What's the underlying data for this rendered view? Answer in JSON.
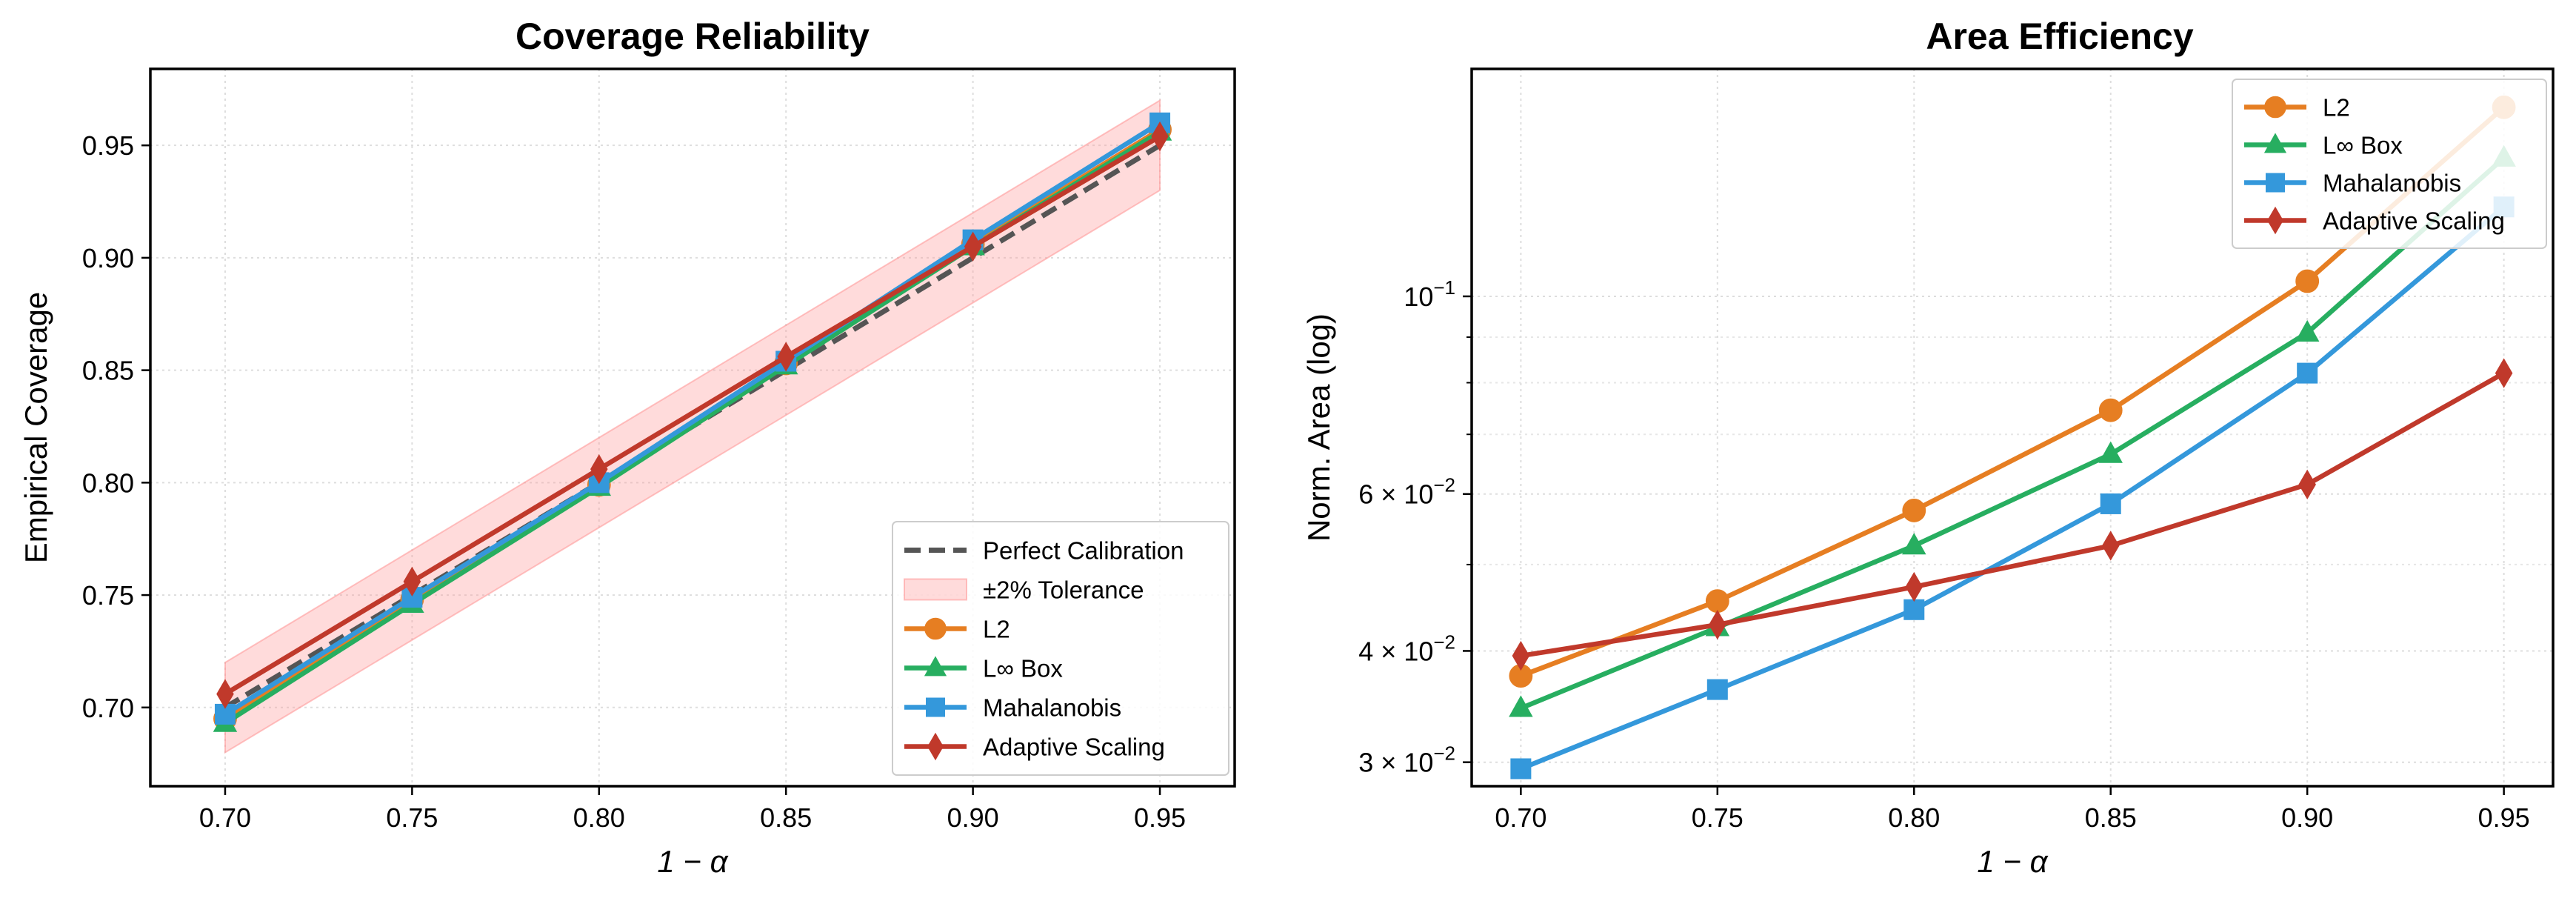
{
  "chart_data": [
    {
      "type": "line",
      "title": "Coverage Reliability",
      "xlabel": "1 − α",
      "ylabel": "Empirical Coverage",
      "x": [
        0.7,
        0.75,
        0.8,
        0.85,
        0.9,
        0.95
      ],
      "xlim": [
        0.68,
        0.97
      ],
      "ylim": [
        0.665,
        0.984
      ],
      "xticks": [
        0.7,
        0.75,
        0.8,
        0.85,
        0.9,
        0.95
      ],
      "xtick_labels": [
        "0.70",
        "0.75",
        "0.80",
        "0.85",
        "0.90",
        "0.95"
      ],
      "yticks": [
        0.7,
        0.75,
        0.8,
        0.85,
        0.9,
        0.95
      ],
      "ytick_labels": [
        "0.70",
        "0.75",
        "0.80",
        "0.85",
        "0.90",
        "0.95"
      ],
      "grid": true,
      "legend_position": "lower right",
      "reference_line": {
        "name": "Perfect Calibration",
        "values": [
          0.7,
          0.75,
          0.8,
          0.85,
          0.9,
          0.95
        ],
        "color": "#555555"
      },
      "band": {
        "name": "±2% Tolerance",
        "lower": [
          0.68,
          0.73,
          0.78,
          0.83,
          0.88,
          0.93
        ],
        "upper": [
          0.72,
          0.77,
          0.82,
          0.87,
          0.92,
          0.97
        ],
        "color": "#ff9999"
      },
      "series": [
        {
          "name": "L2",
          "color": "#e67e22",
          "marker": "circle",
          "values": [
            0.695,
            0.748,
            0.799,
            0.853,
            0.906,
            0.957
          ]
        },
        {
          "name": "L∞ Box",
          "color": "#27ae60",
          "marker": "triangle",
          "values": [
            0.693,
            0.746,
            0.798,
            0.852,
            0.905,
            0.956
          ]
        },
        {
          "name": "Mahalanobis",
          "color": "#3498db",
          "marker": "square",
          "values": [
            0.697,
            0.749,
            0.8,
            0.854,
            0.908,
            0.96
          ]
        },
        {
          "name": "Adaptive Scaling",
          "color": "#c0392b",
          "marker": "diamond",
          "values": [
            0.706,
            0.756,
            0.806,
            0.856,
            0.905,
            0.954
          ]
        }
      ]
    },
    {
      "type": "line",
      "title": "Area Efficiency",
      "xlabel": "1 − α",
      "ylabel": "Norm. Area (log)",
      "yscale": "log",
      "x": [
        0.7,
        0.75,
        0.8,
        0.85,
        0.9,
        0.95
      ],
      "xlim": [
        0.6875,
        0.9625
      ],
      "ylim": [
        0.0282,
        0.18
      ],
      "xticks": [
        0.7,
        0.75,
        0.8,
        0.85,
        0.9,
        0.95
      ],
      "xtick_labels": [
        "0.70",
        "0.75",
        "0.80",
        "0.85",
        "0.90",
        "0.95"
      ],
      "yticks": [
        0.03,
        0.04,
        0.06,
        0.1
      ],
      "ytick_labels": [
        {
          "base": "3 × 10",
          "exp": "−2"
        },
        {
          "base": "4 × 10",
          "exp": "−2"
        },
        {
          "base": "6 × 10",
          "exp": "−2"
        },
        {
          "base": "10",
          "exp": "−1"
        }
      ],
      "grid": true,
      "legend_position": "upper right",
      "series": [
        {
          "name": "L2",
          "color": "#e67e22",
          "marker": "circle",
          "values": [
            0.0375,
            0.0455,
            0.0575,
            0.0745,
            0.104,
            0.163
          ]
        },
        {
          "name": "L∞ Box",
          "color": "#27ae60",
          "marker": "triangle",
          "values": [
            0.0345,
            0.0425,
            0.0525,
            0.0665,
            0.091,
            0.143
          ]
        },
        {
          "name": "Mahalanobis",
          "color": "#3498db",
          "marker": "square",
          "values": [
            0.0295,
            0.0362,
            0.0445,
            0.0585,
            0.082,
            0.126
          ]
        },
        {
          "name": "Adaptive Scaling",
          "color": "#c0392b",
          "marker": "diamond",
          "values": [
            0.0395,
            0.0428,
            0.0472,
            0.0525,
            0.0615,
            0.082
          ]
        }
      ]
    }
  ]
}
